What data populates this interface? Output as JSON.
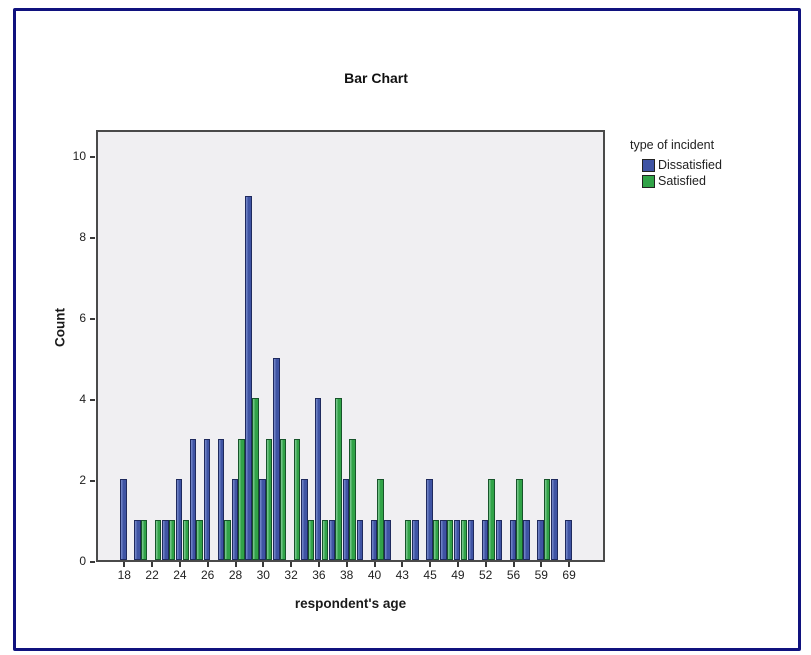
{
  "chart_data": {
    "type": "bar",
    "title": "Bar Chart",
    "xlabel": "respondent's age",
    "ylabel": "Count",
    "legend_title": "type of incident",
    "legend_position": "right",
    "grid": false,
    "ylim": [
      0,
      10
    ],
    "yticks": [
      0,
      2,
      4,
      6,
      8,
      10
    ],
    "x_tick_labels": [
      "18",
      "22",
      "24",
      "26",
      "28",
      "30",
      "32",
      "36",
      "38",
      "40",
      "43",
      "45",
      "49",
      "52",
      "56",
      "59",
      "69"
    ],
    "categories": [
      "18",
      "",
      "22",
      "",
      "24",
      "",
      "26",
      "",
      "28",
      "",
      "30",
      "",
      "32",
      "",
      "36",
      "",
      "38",
      "",
      "40",
      "",
      "43",
      "",
      "45",
      "",
      "49",
      "",
      "52",
      "",
      "56",
      "",
      "59",
      "",
      "69"
    ],
    "series": [
      {
        "name": "Dissatisfied",
        "color": "#3f54a4",
        "border_color": "#1f2a5e",
        "values": [
          2,
          1,
          0,
          1,
          2,
          3,
          3,
          3,
          2,
          9,
          2,
          5,
          0,
          2,
          4,
          1,
          2,
          1,
          1,
          1,
          0,
          1,
          2,
          1,
          1,
          1,
          1,
          1,
          1,
          1,
          1,
          2,
          1
        ]
      },
      {
        "name": "Satisfied",
        "color": "#31a348",
        "border_color": "#17542a",
        "values": [
          0,
          1,
          1,
          1,
          1,
          1,
          0,
          1,
          3,
          4,
          3,
          3,
          3,
          1,
          1,
          4,
          3,
          0,
          2,
          0,
          1,
          0,
          1,
          1,
          1,
          0,
          2,
          0,
          2,
          0,
          2,
          0,
          0
        ]
      }
    ]
  },
  "colors": {
    "plot_background": "#f0eff2",
    "outer_border": "#10127e",
    "axis": "#3a3a3a"
  }
}
